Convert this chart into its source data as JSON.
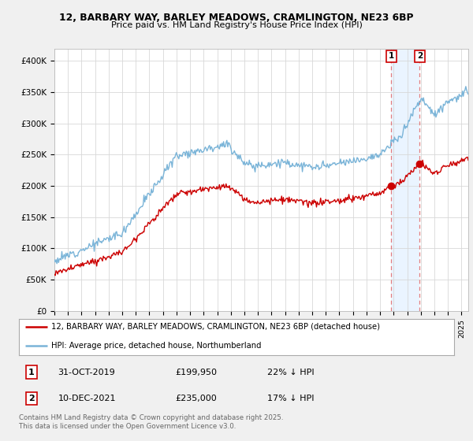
{
  "title1": "12, BARBARY WAY, BARLEY MEADOWS, CRAMLINGTON, NE23 6BP",
  "title2": "Price paid vs. HM Land Registry's House Price Index (HPI)",
  "ylim": [
    0,
    420000
  ],
  "ytick_vals": [
    0,
    50000,
    100000,
    150000,
    200000,
    250000,
    300000,
    350000,
    400000
  ],
  "ytick_labels": [
    "£0",
    "£50K",
    "£100K",
    "£150K",
    "£200K",
    "£250K",
    "£300K",
    "£350K",
    "£400K"
  ],
  "bg_color": "#f0f0f0",
  "plot_bg_color": "#ffffff",
  "grid_color": "#d8d8d8",
  "hpi_color": "#7ab4d8",
  "price_color": "#cc0000",
  "shade_color": "#ddeeff",
  "t1_year": 2019.83,
  "t2_year": 2021.92,
  "t1_price": 199950,
  "t2_price": 235000,
  "transaction1_date": "31-OCT-2019",
  "transaction1_price_str": "£199,950",
  "transaction1_note": "22% ↓ HPI",
  "transaction2_date": "10-DEC-2021",
  "transaction2_price_str": "£235,000",
  "transaction2_note": "17% ↓ HPI",
  "footer": "Contains HM Land Registry data © Crown copyright and database right 2025.\nThis data is licensed under the Open Government Licence v3.0.",
  "legend1": "12, BARBARY WAY, BARLEY MEADOWS, CRAMLINGTON, NE23 6BP (detached house)",
  "legend2": "HPI: Average price, detached house, Northumberland",
  "xmin": 1995,
  "xmax": 2025.5
}
